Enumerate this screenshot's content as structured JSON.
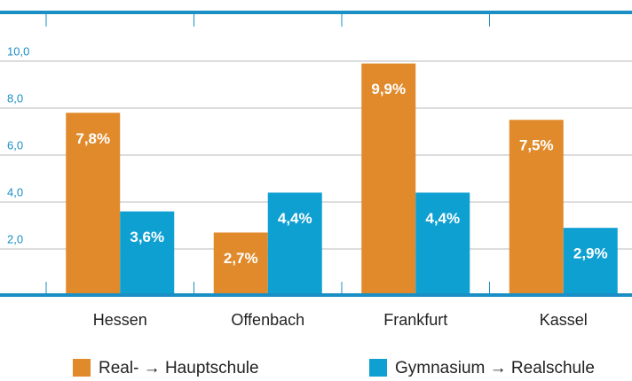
{
  "chart_data": {
    "type": "bar",
    "categories": [
      "Hessen",
      "Offenbach",
      "Frankfurt",
      "Kassel"
    ],
    "series": [
      {
        "name": "Real- → Hauptschule",
        "color": "#e08a2b",
        "values": [
          7.8,
          2.7,
          9.9,
          7.5
        ],
        "value_labels": [
          "7,8%",
          "2,7%",
          "9,9%",
          "7,5%"
        ]
      },
      {
        "name": "Gymnasium → Realschule",
        "color": "#0fa0d2",
        "values": [
          3.6,
          4.4,
          4.4,
          2.9
        ],
        "value_labels": [
          "3,6%",
          "4,4%",
          "4,4%",
          "2,9%"
        ]
      }
    ],
    "ylim": [
      0,
      12
    ],
    "yticks": [
      {
        "value": 2,
        "label": "2,0"
      },
      {
        "value": 4,
        "label": "4,0"
      },
      {
        "value": 6,
        "label": "6,0"
      },
      {
        "value": 8,
        "label": "8,0"
      },
      {
        "value": 10,
        "label": "10,0"
      }
    ],
    "grid": true
  }
}
